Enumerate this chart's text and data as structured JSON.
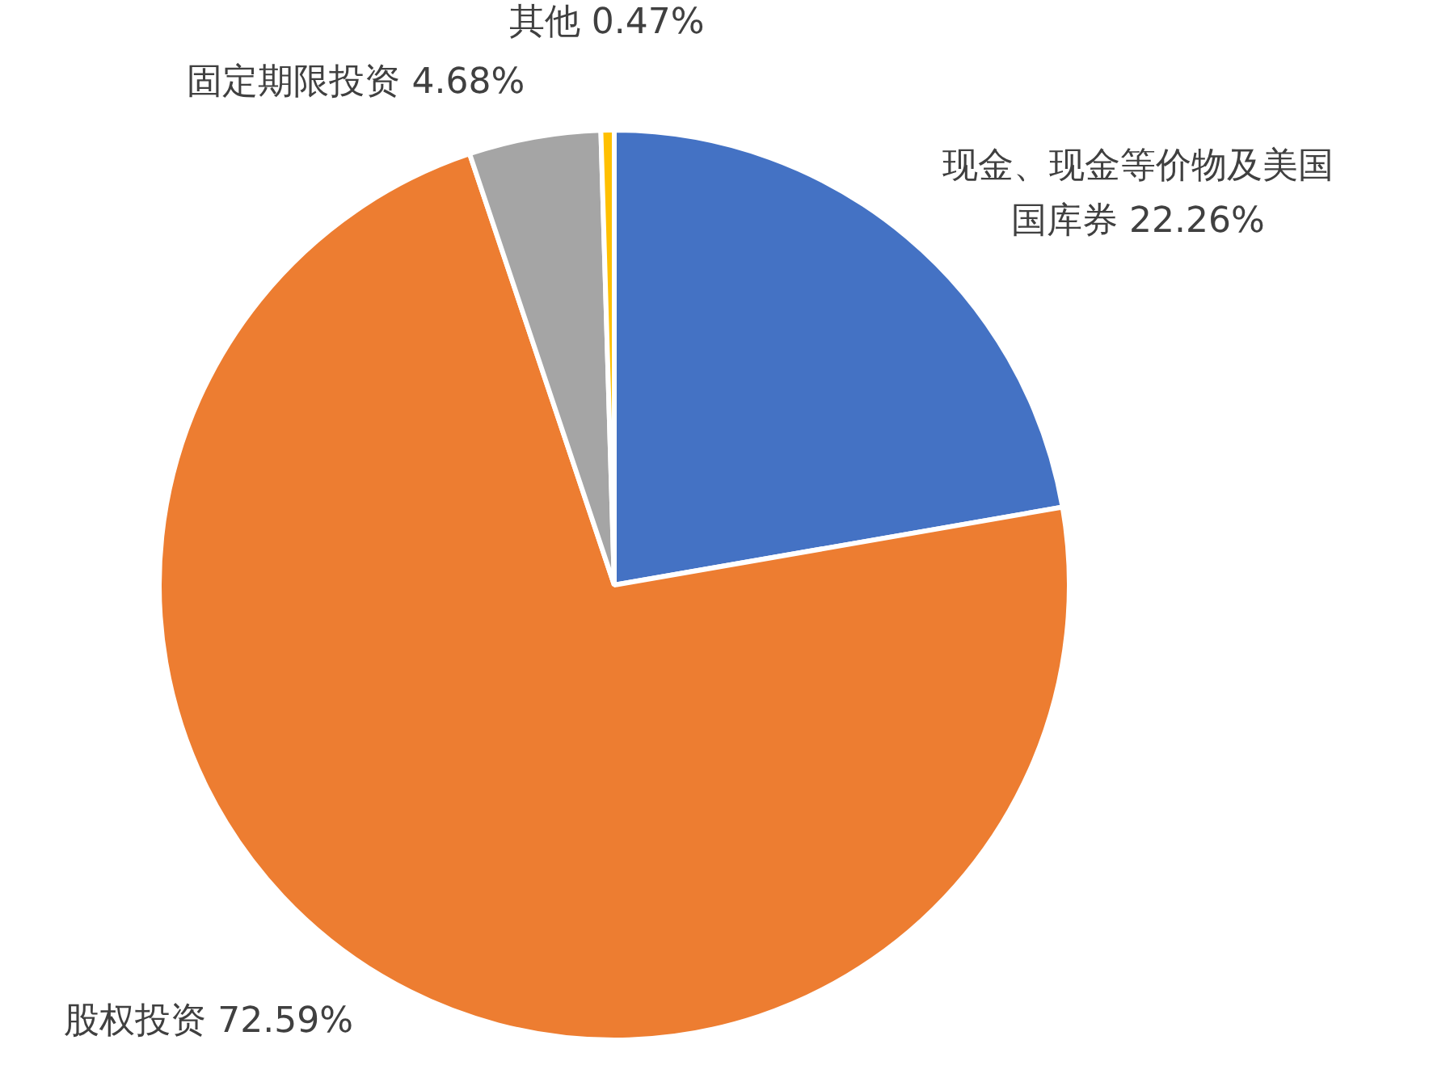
{
  "chart_data": {
    "type": "pie",
    "categories": [
      "现金、现金等价物及美国国库券",
      "股权投资",
      "固定期限投资",
      "其他"
    ],
    "values": [
      22.26,
      72.59,
      4.68,
      0.47
    ],
    "colors": [
      "#4472c4",
      "#ed7d31",
      "#a5a5a5",
      "#ffc000"
    ],
    "value_labels": [
      "22.26%",
      "72.59%",
      "4.68%",
      "0.47%"
    ],
    "legend": false
  }
}
